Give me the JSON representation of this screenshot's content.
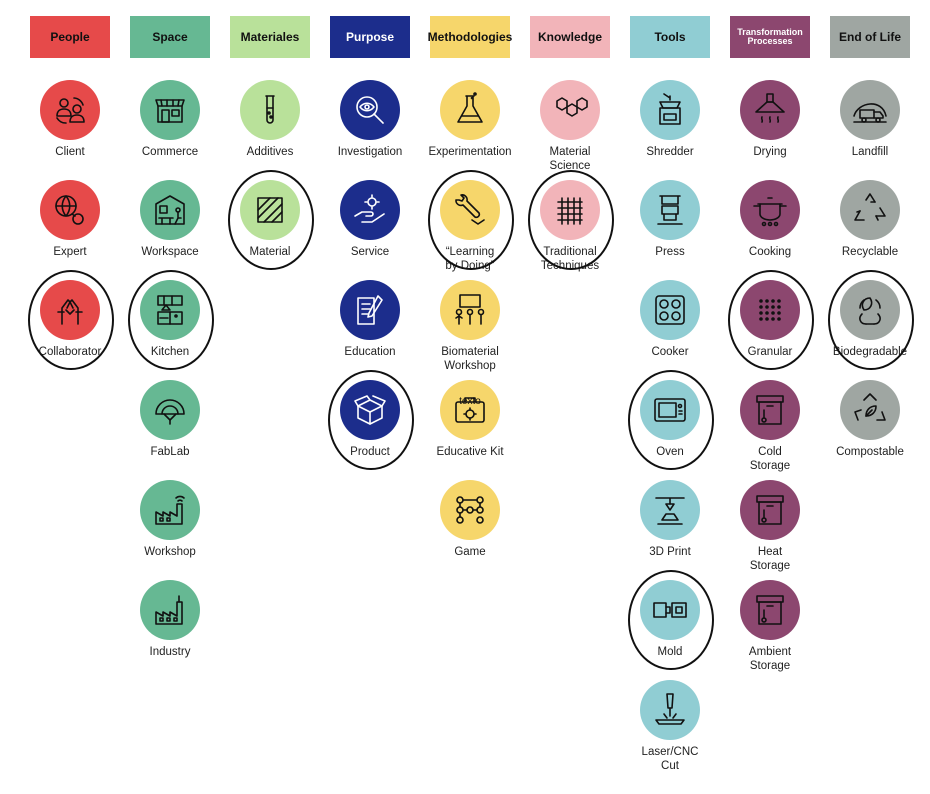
{
  "colors": {
    "people": "#e64a4a",
    "space": "#66b893",
    "materiales": "#b9e19a",
    "purpose": "#1c2d8c",
    "methodologies": "#f6d66b",
    "knowledge": "#f2b4b9",
    "tools": "#90cdd3",
    "transformation": "#8c476f",
    "end_of_life": "#9fa6a2"
  },
  "columns": [
    {
      "key": "people",
      "header": "People",
      "items": [
        {
          "label": "Client",
          "icon": "users-cycle-icon"
        },
        {
          "label": "Expert",
          "icon": "globe-network-icon"
        },
        {
          "label": "Collaborator",
          "icon": "hands-together-icon",
          "circled": true
        }
      ]
    },
    {
      "key": "space",
      "header": "Space",
      "items": [
        {
          "label": "Commerce",
          "icon": "storefront-icon"
        },
        {
          "label": "Workspace",
          "icon": "desk-workspace-icon"
        },
        {
          "label": "Kitchen",
          "icon": "kitchen-icon",
          "circled": true
        },
        {
          "label": "FabLab",
          "icon": "dome-icon"
        },
        {
          "label": "Workshop",
          "icon": "factory-wifi-icon"
        },
        {
          "label": "Industry",
          "icon": "factory-icon"
        }
      ]
    },
    {
      "key": "materiales",
      "header": "Materiales",
      "items": [
        {
          "label": "Additives",
          "icon": "test-tube-icon"
        },
        {
          "label": "Material",
          "icon": "material-square-icon",
          "circled": true
        }
      ]
    },
    {
      "key": "purpose",
      "header": "Purpose",
      "items": [
        {
          "label": "Investigation",
          "icon": "magnifier-eye-icon"
        },
        {
          "label": "Service",
          "icon": "hand-gear-icon"
        },
        {
          "label": "Education",
          "icon": "book-pencil-icon"
        },
        {
          "label": "Product",
          "icon": "open-box-icon",
          "circled": true
        }
      ]
    },
    {
      "key": "methodologies",
      "header": "Methodologies",
      "items": [
        {
          "label": "Experimentation",
          "icon": "flask-icon"
        },
        {
          "label": "“Learning\nby Doing”",
          "icon": "hand-wrench-icon",
          "circled": true
        },
        {
          "label": "Biomaterial\nWorkshop",
          "icon": "people-board-icon"
        },
        {
          "label": "Educative Kit",
          "icon": "toolbox-icon",
          "overlay": "texto"
        },
        {
          "label": "Game",
          "icon": "nodes-grid-icon"
        }
      ]
    },
    {
      "key": "knowledge",
      "header": "Knowledge",
      "items": [
        {
          "label": "Material\nScience",
          "icon": "hexagons-icon"
        },
        {
          "label": "Traditional\nTechniques",
          "icon": "weave-grid-icon",
          "circled": true
        }
      ]
    },
    {
      "key": "tools",
      "header": "Tools",
      "items": [
        {
          "label": "Shredder",
          "icon": "grinder-icon"
        },
        {
          "label": "Press",
          "icon": "press-icon"
        },
        {
          "label": "Cooker",
          "icon": "cooktop-icon"
        },
        {
          "label": "Oven",
          "icon": "microwave-icon",
          "circled": true
        },
        {
          "label": "3D Print",
          "icon": "printer-3d-icon"
        },
        {
          "label": "Mold",
          "icon": "mold-icon",
          "circled": true
        },
        {
          "label": "Laser/CNC\nCut",
          "icon": "laser-icon"
        }
      ]
    },
    {
      "key": "transformation",
      "header": "Transformation\nProcesses",
      "items": [
        {
          "label": "Drying",
          "icon": "range-hood-icon"
        },
        {
          "label": "Cooking",
          "icon": "pot-icon"
        },
        {
          "label": "Granular",
          "icon": "dots-grid-icon",
          "circled": true
        },
        {
          "label": "Cold\nStorage",
          "icon": "box-thermometer-icon"
        },
        {
          "label": "Heat\nStorage",
          "icon": "box-thermometer-icon"
        },
        {
          "label": "Ambient\nStorage",
          "icon": "box-thermometer-icon"
        }
      ]
    },
    {
      "key": "end_of_life",
      "header": "End of Life",
      "items": [
        {
          "label": "Landfill",
          "icon": "landfill-truck-icon"
        },
        {
          "label": "Recyclable",
          "icon": "recycle-icon"
        },
        {
          "label": "Biodegradable",
          "icon": "leaf-cycle-icon",
          "circled": true
        },
        {
          "label": "Compostable",
          "icon": "leaf-recycle-icon"
        }
      ]
    }
  ]
}
